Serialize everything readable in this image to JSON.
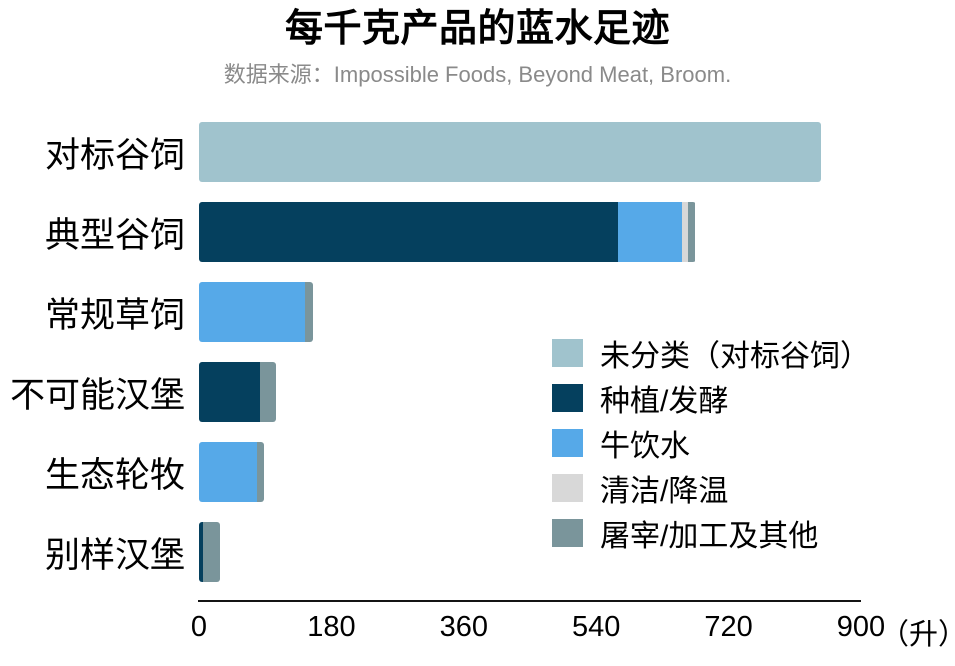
{
  "title": "每千克产品的蓝水足迹",
  "subtitle": "数据来源：Impossible Foods, Beyond Meat, Broom.",
  "chart_data": {
    "type": "bar",
    "stacked": true,
    "orientation": "horizontal",
    "grid": false,
    "legend_position": "inside-right",
    "xlim": [
      0,
      900
    ],
    "x_ticks": [
      0,
      180,
      360,
      540,
      720,
      900
    ],
    "x_unit": "（升）",
    "legend": [
      {
        "key": "uncategorized",
        "label": "未分类（对标谷饲）",
        "color": "#a0c3cd"
      },
      {
        "key": "cultivation_fermentation",
        "label": "种植/发酵",
        "color": "#05405e"
      },
      {
        "key": "cattle_drinking_water",
        "label": "牛饮水",
        "color": "#56a9e8"
      },
      {
        "key": "cleaning_cooling",
        "label": "清洁/降温",
        "color": "#d8d8d8"
      },
      {
        "key": "slaughter_processing_other",
        "label": "屠宰/加工及其他",
        "color": "#7a959b"
      }
    ],
    "categories": [
      {
        "label": "对标谷饲",
        "segments": [
          {
            "key": "uncategorized",
            "value": 845
          }
        ]
      },
      {
        "label": "典型谷饲",
        "segments": [
          {
            "key": "cultivation_fermentation",
            "value": 570
          },
          {
            "key": "cattle_drinking_water",
            "value": 87
          },
          {
            "key": "cleaning_cooling",
            "value": 8
          },
          {
            "key": "slaughter_processing_other",
            "value": 10
          }
        ]
      },
      {
        "label": "常规草饲",
        "segments": [
          {
            "key": "cattle_drinking_water",
            "value": 144
          },
          {
            "key": "slaughter_processing_other",
            "value": 11
          }
        ]
      },
      {
        "label": "不可能汉堡",
        "segments": [
          {
            "key": "cultivation_fermentation",
            "value": 83
          },
          {
            "key": "slaughter_processing_other",
            "value": 22
          }
        ]
      },
      {
        "label": "生态轮牧",
        "segments": [
          {
            "key": "cattle_drinking_water",
            "value": 79
          },
          {
            "key": "slaughter_processing_other",
            "value": 10
          }
        ]
      },
      {
        "label": "别样汉堡",
        "segments": [
          {
            "key": "cultivation_fermentation",
            "value": 5
          },
          {
            "key": "slaughter_processing_other",
            "value": 23
          }
        ]
      }
    ]
  }
}
